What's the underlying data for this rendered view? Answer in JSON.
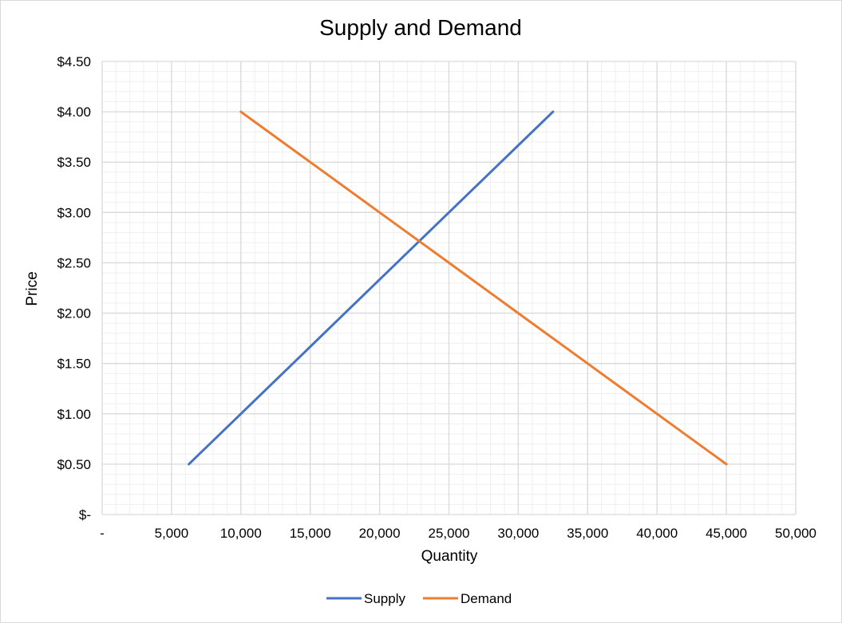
{
  "chart_data": {
    "type": "line",
    "title": "Supply and Demand",
    "xlabel": "Quantity",
    "ylabel": "Price",
    "xlim": [
      0,
      50000
    ],
    "ylim": [
      0,
      4.5
    ],
    "x_ticks": [
      0,
      5000,
      10000,
      15000,
      20000,
      25000,
      30000,
      35000,
      40000,
      45000,
      50000
    ],
    "x_tick_labels": [
      "-",
      "5,000",
      "10,000",
      "15,000",
      "20,000",
      "25,000",
      "30,000",
      "35,000",
      "40,000",
      "45,000",
      "50,000"
    ],
    "y_ticks": [
      0,
      0.5,
      1.0,
      1.5,
      2.0,
      2.5,
      3.0,
      3.5,
      4.0,
      4.5
    ],
    "y_tick_labels": [
      "$-",
      "$0.50",
      "$1.00",
      "$1.50",
      "$2.00",
      "$2.50",
      "$3.00",
      "$3.50",
      "$4.00",
      "$4.50"
    ],
    "grid": "major and minor",
    "legend_position": "bottom",
    "series": [
      {
        "name": "Supply",
        "color": "#4472C4",
        "points": [
          {
            "x": 6250,
            "y": 0.5
          },
          {
            "x": 10000,
            "y": 1.0
          },
          {
            "x": 13750,
            "y": 1.5
          },
          {
            "x": 17500,
            "y": 2.0
          },
          {
            "x": 21250,
            "y": 2.5
          },
          {
            "x": 25000,
            "y": 3.0
          },
          {
            "x": 28750,
            "y": 3.5
          },
          {
            "x": 32500,
            "y": 4.0
          }
        ]
      },
      {
        "name": "Demand",
        "color": "#ED7D31",
        "points": [
          {
            "x": 10000,
            "y": 4.0
          },
          {
            "x": 15000,
            "y": 3.5
          },
          {
            "x": 20000,
            "y": 3.0
          },
          {
            "x": 25000,
            "y": 2.5
          },
          {
            "x": 30000,
            "y": 2.0
          },
          {
            "x": 35000,
            "y": 1.5
          },
          {
            "x": 40000,
            "y": 1.0
          },
          {
            "x": 45000,
            "y": 0.5
          }
        ]
      }
    ]
  }
}
